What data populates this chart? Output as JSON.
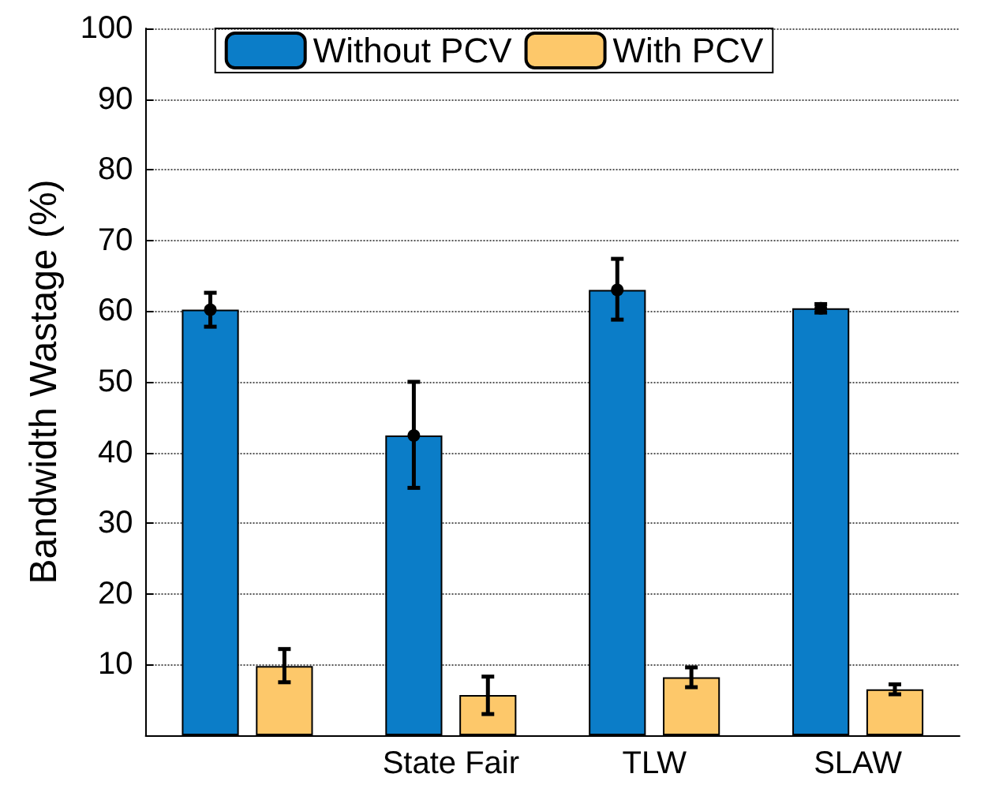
{
  "chart_data": {
    "type": "bar",
    "ylabel": "Bandwidth Wastage (%)",
    "categories": [
      null,
      "State Fair",
      "TLW",
      "SLAW"
    ],
    "series": [
      {
        "name": "Without PCV",
        "color": "#0b7dc8",
        "values": [
          60.2,
          42.4,
          63,
          60.4
        ],
        "errors": [
          [
            57.8,
            62.6
          ],
          [
            35,
            50
          ],
          [
            58.8,
            67.4
          ],
          [
            59.8,
            61
          ]
        ]
      },
      {
        "type": "scatter",
        "color": "#000000",
        "marker": "circle",
        "values": [
          60.2,
          42.4,
          63,
          60.4
        ]
      },
      {
        "name": "With PCV",
        "color": "#fdc86a",
        "values": [
          9.8,
          5.7,
          8.2,
          6.5
        ],
        "errors": [
          [
            7.5,
            12.2
          ],
          [
            3,
            8.3
          ],
          [
            6.8,
            9.6
          ],
          [
            5.8,
            7.2
          ]
        ]
      }
    ],
    "ylim": [
      0,
      100
    ],
    "yticks": [
      10,
      20,
      30,
      40,
      50,
      60,
      70,
      80,
      90,
      100
    ],
    "grid": "y",
    "legend": "top"
  }
}
